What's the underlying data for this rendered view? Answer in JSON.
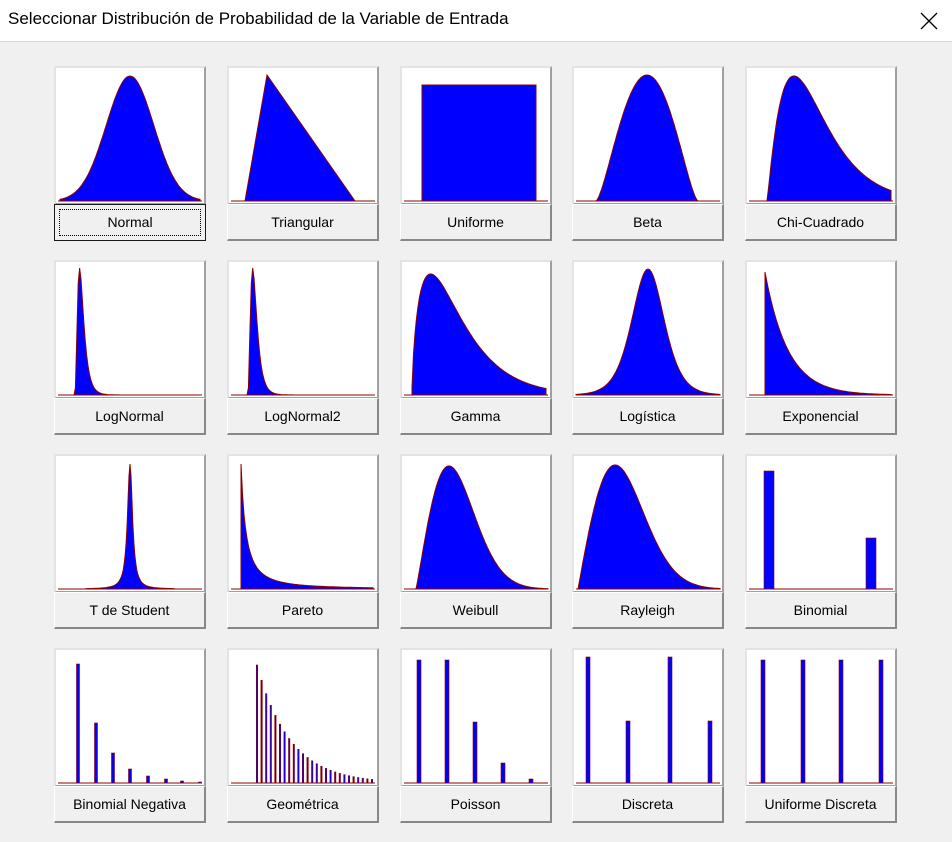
{
  "window": {
    "title": "Seleccionar Distribución de Probabilidad de la Variable de Entrada",
    "close_icon": "close-icon"
  },
  "colors": {
    "fill": "#0000ff",
    "outline": "#8b0000",
    "background": "#f0f0f0"
  },
  "selected": "Normal",
  "distributions": [
    {
      "label": "Normal",
      "icon": "normal-curve-icon"
    },
    {
      "label": "Triangular",
      "icon": "triangular-shape-icon"
    },
    {
      "label": "Uniforme",
      "icon": "uniform-rectangle-icon"
    },
    {
      "label": "Beta",
      "icon": "beta-curve-icon"
    },
    {
      "label": "Chi-Cuadrado",
      "icon": "chi-square-curve-icon"
    },
    {
      "label": "LogNormal",
      "icon": "lognormal-curve-icon"
    },
    {
      "label": "LogNormal2",
      "icon": "lognormal2-curve-icon"
    },
    {
      "label": "Gamma",
      "icon": "gamma-curve-icon"
    },
    {
      "label": "Logística",
      "icon": "logistic-curve-icon"
    },
    {
      "label": "Exponencial",
      "icon": "exponential-curve-icon"
    },
    {
      "label": "T de Student",
      "icon": "student-t-curve-icon"
    },
    {
      "label": "Pareto",
      "icon": "pareto-curve-icon"
    },
    {
      "label": "Weibull",
      "icon": "weibull-curve-icon"
    },
    {
      "label": "Rayleigh",
      "icon": "rayleigh-curve-icon"
    },
    {
      "label": "Binomial",
      "icon": "binomial-bars-icon"
    },
    {
      "label": "Binomial Negativa",
      "icon": "negative-binomial-bars-icon"
    },
    {
      "label": "Geométrica",
      "icon": "geometric-bars-icon"
    },
    {
      "label": "Poisson",
      "icon": "poisson-bars-icon"
    },
    {
      "label": "Discreta",
      "icon": "discrete-bars-icon"
    },
    {
      "label": "Uniforme Discreta",
      "icon": "discrete-uniform-bars-icon"
    }
  ]
}
